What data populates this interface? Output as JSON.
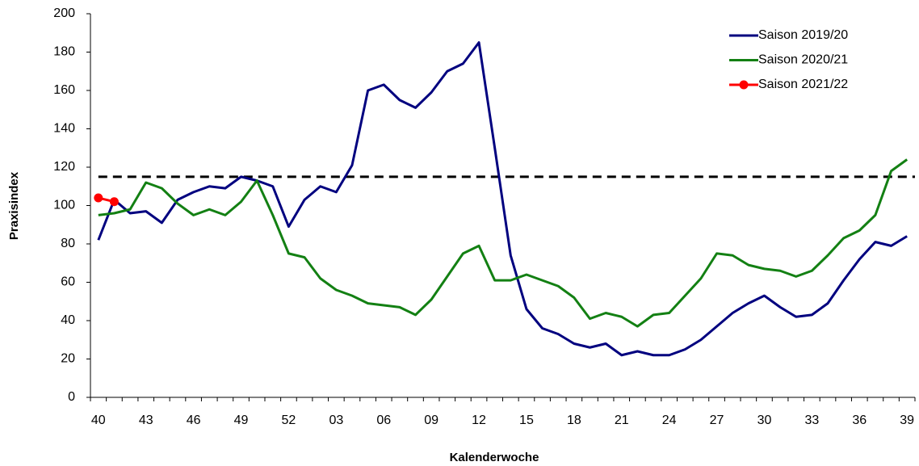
{
  "chart_data": {
    "type": "line",
    "x_label": "Kalenderwoche",
    "y_label": "Praxisindex",
    "categories": [
      "40",
      null,
      null,
      "43",
      null,
      null,
      "46",
      null,
      null,
      "49",
      null,
      null,
      "52",
      null,
      null,
      "03",
      null,
      null,
      "06",
      null,
      null,
      "09",
      null,
      null,
      "12",
      null,
      null,
      "15",
      null,
      null,
      "18",
      null,
      null,
      "21",
      null,
      null,
      "24",
      null,
      null,
      "27",
      null,
      null,
      "30",
      null,
      null,
      "33",
      null,
      null,
      "36",
      null,
      null,
      "39"
    ],
    "series": [
      {
        "name": "Saison 2019/20",
        "color": "#00007f",
        "values": [
          82,
          103,
          96,
          97,
          91,
          103,
          107,
          110,
          109,
          115,
          113,
          110,
          89,
          103,
          110,
          107,
          121,
          160,
          163,
          155,
          151,
          159,
          170,
          174,
          185,
          130,
          74,
          46,
          36,
          33,
          28,
          26,
          28,
          22,
          24,
          22,
          22,
          25,
          30,
          37,
          44,
          49,
          53,
          47,
          42,
          43,
          49,
          61,
          72,
          81,
          79,
          84
        ]
      },
      {
        "name": "Saison 2020/21",
        "color": "#138013",
        "values": [
          95,
          96,
          98,
          112,
          109,
          101,
          95,
          98,
          95,
          102,
          113,
          95,
          75,
          73,
          62,
          56,
          53,
          49,
          48,
          47,
          43,
          51,
          63,
          75,
          79,
          61,
          61,
          64,
          61,
          58,
          52,
          41,
          44,
          42,
          37,
          43,
          44,
          53,
          62,
          75,
          74,
          69,
          67,
          66,
          63,
          66,
          74,
          83,
          87,
          95,
          118,
          124
        ]
      },
      {
        "name": "Saison 2021/22",
        "color": "#ff0000",
        "marker": true,
        "values": [
          104,
          102,
          null,
          null,
          null,
          null,
          null,
          null,
          null,
          null,
          null,
          null,
          null,
          null,
          null,
          null,
          null,
          null,
          null,
          null,
          null,
          null,
          null,
          null,
          null,
          null,
          null,
          null,
          null,
          null,
          null,
          null,
          null,
          null,
          null,
          null,
          null,
          null,
          null,
          null,
          null,
          null,
          null,
          null,
          null,
          null,
          null,
          null,
          null,
          null,
          null,
          null
        ]
      }
    ],
    "reference_line": 115,
    "ylim": [
      0,
      200
    ],
    "yticks": [
      0,
      20,
      40,
      60,
      80,
      100,
      120,
      140,
      160,
      180,
      200
    ],
    "grid": false,
    "legend": "top-right"
  }
}
